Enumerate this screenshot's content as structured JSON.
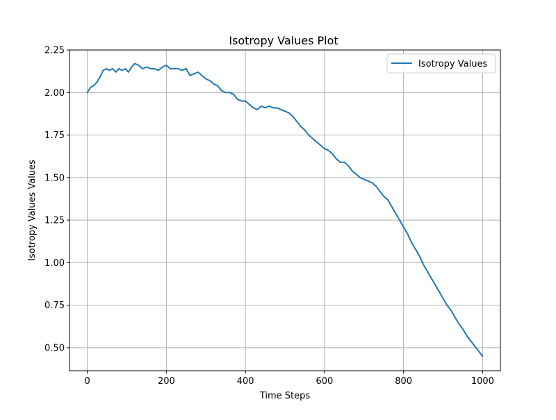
{
  "chart_data": {
    "type": "line",
    "title": "Isotropy Values Plot",
    "xlabel": "Time Steps",
    "ylabel": "Isotropy Values Values",
    "xlim": [
      -45,
      1045
    ],
    "ylim": [
      0.365,
      2.25
    ],
    "xticks": [
      0,
      200,
      400,
      600,
      800,
      1000
    ],
    "xtick_labels": [
      "0",
      "200",
      "400",
      "600",
      "800",
      "1000"
    ],
    "yticks": [
      0.5,
      0.75,
      1.0,
      1.25,
      1.5,
      1.75,
      2.0,
      2.25
    ],
    "ytick_labels": [
      "0.50",
      "0.75",
      "1.00",
      "1.25",
      "1.50",
      "1.75",
      "2.00",
      "2.25"
    ],
    "grid": true,
    "legend": {
      "placement": "upper-right"
    },
    "series": [
      {
        "name": "Isotropy Values",
        "color": "#1f77b4",
        "x": [
          0,
          8,
          16,
          24,
          32,
          40,
          48,
          56,
          64,
          72,
          80,
          88,
          96,
          104,
          112,
          120,
          130,
          140,
          150,
          160,
          170,
          180,
          190,
          200,
          210,
          220,
          230,
          240,
          250,
          260,
          270,
          280,
          290,
          300,
          310,
          320,
          330,
          340,
          350,
          360,
          370,
          380,
          390,
          400,
          410,
          420,
          430,
          440,
          450,
          460,
          470,
          480,
          490,
          500,
          510,
          520,
          530,
          540,
          550,
          560,
          570,
          580,
          590,
          600,
          610,
          620,
          630,
          640,
          650,
          660,
          670,
          680,
          690,
          700,
          710,
          720,
          730,
          740,
          750,
          760,
          770,
          780,
          790,
          800,
          810,
          820,
          830,
          840,
          850,
          860,
          870,
          880,
          890,
          900,
          910,
          920,
          930,
          940,
          950,
          960,
          970,
          980,
          990,
          1000
        ],
        "values": [
          2.0,
          2.03,
          2.04,
          2.06,
          2.09,
          2.13,
          2.14,
          2.13,
          2.14,
          2.12,
          2.14,
          2.13,
          2.14,
          2.12,
          2.15,
          2.17,
          2.16,
          2.14,
          2.15,
          2.14,
          2.14,
          2.13,
          2.15,
          2.16,
          2.14,
          2.14,
          2.14,
          2.13,
          2.14,
          2.1,
          2.11,
          2.12,
          2.1,
          2.08,
          2.07,
          2.05,
          2.04,
          2.01,
          2.0,
          2.0,
          1.99,
          1.96,
          1.95,
          1.95,
          1.93,
          1.91,
          1.9,
          1.92,
          1.91,
          1.92,
          1.91,
          1.91,
          1.9,
          1.89,
          1.88,
          1.86,
          1.83,
          1.8,
          1.78,
          1.75,
          1.73,
          1.71,
          1.69,
          1.67,
          1.66,
          1.64,
          1.61,
          1.59,
          1.59,
          1.57,
          1.54,
          1.52,
          1.5,
          1.49,
          1.48,
          1.47,
          1.45,
          1.42,
          1.39,
          1.37,
          1.33,
          1.29,
          1.25,
          1.21,
          1.17,
          1.12,
          1.08,
          1.04,
          0.99,
          0.95,
          0.91,
          0.87,
          0.83,
          0.79,
          0.75,
          0.72,
          0.68,
          0.64,
          0.61,
          0.57,
          0.54,
          0.51,
          0.48,
          0.45
        ]
      }
    ]
  }
}
